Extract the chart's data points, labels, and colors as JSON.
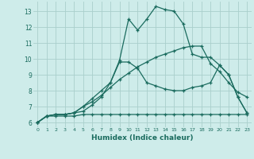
{
  "xlabel": "Humidex (Indice chaleur)",
  "bg_color": "#ceecea",
  "grid_color": "#aacfcc",
  "line_color": "#1a6b5e",
  "xlim": [
    -0.5,
    23.5
  ],
  "ylim": [
    5.7,
    13.6
  ],
  "yticks": [
    6,
    7,
    8,
    9,
    10,
    11,
    12,
    13
  ],
  "xticks": [
    0,
    1,
    2,
    3,
    4,
    5,
    6,
    7,
    8,
    9,
    10,
    11,
    12,
    13,
    14,
    15,
    16,
    17,
    18,
    19,
    20,
    21,
    22,
    23
  ],
  "line1_x": [
    0,
    1,
    2,
    3,
    4,
    5,
    6,
    7,
    8,
    9,
    10,
    11,
    12,
    13,
    14,
    15,
    16,
    17,
    18,
    19,
    20,
    21,
    22,
    23
  ],
  "line1_y": [
    6.0,
    6.4,
    6.4,
    6.4,
    6.4,
    6.5,
    6.5,
    6.5,
    6.5,
    6.5,
    6.5,
    6.5,
    6.5,
    6.5,
    6.5,
    6.5,
    6.5,
    6.5,
    6.5,
    6.5,
    6.5,
    6.5,
    6.5,
    6.5
  ],
  "line2_x": [
    0,
    1,
    2,
    3,
    4,
    5,
    6,
    7,
    8,
    9,
    10,
    11,
    12,
    13,
    14,
    15,
    16,
    17,
    18,
    19,
    20,
    21,
    22,
    23
  ],
  "line2_y": [
    6.0,
    6.4,
    6.5,
    6.5,
    6.6,
    7.0,
    7.3,
    7.7,
    8.2,
    8.7,
    9.1,
    9.5,
    9.8,
    10.1,
    10.3,
    10.5,
    10.7,
    10.8,
    10.8,
    9.7,
    9.2,
    8.5,
    7.9,
    7.6
  ],
  "line3_x": [
    0,
    1,
    2,
    3,
    4,
    5,
    6,
    7,
    8,
    9,
    10,
    11,
    12,
    13,
    14,
    15,
    16,
    17,
    18,
    19,
    20,
    21,
    22,
    23
  ],
  "line3_y": [
    6.0,
    6.4,
    6.5,
    6.5,
    6.6,
    6.7,
    7.1,
    7.6,
    8.5,
    9.9,
    12.5,
    11.8,
    12.5,
    13.3,
    13.1,
    13.0,
    12.2,
    10.3,
    10.1,
    10.1,
    9.6,
    9.0,
    7.6,
    6.6
  ],
  "line4_x": [
    0,
    1,
    2,
    3,
    4,
    5,
    6,
    7,
    8,
    9,
    10,
    11,
    12,
    13,
    14,
    15,
    16,
    17,
    18,
    19,
    20,
    21,
    22,
    23
  ],
  "line4_y": [
    6.0,
    6.4,
    6.5,
    6.5,
    6.6,
    7.0,
    7.5,
    8.0,
    8.5,
    9.8,
    9.8,
    9.4,
    8.5,
    8.3,
    8.1,
    8.0,
    8.0,
    8.2,
    8.3,
    8.5,
    9.6,
    9.0,
    7.6,
    6.6
  ]
}
